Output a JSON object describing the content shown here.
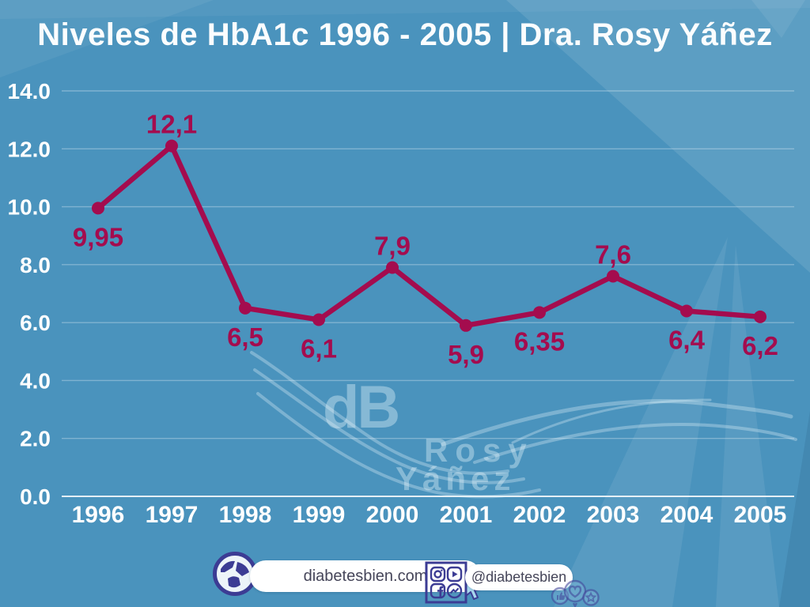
{
  "title": "Niveles de HbA1c 1996 - 2005 | Dra. Rosy Yáñez",
  "colors": {
    "background": "#4a93bd",
    "line": "#a40c4e",
    "axis_text": "#ffffff",
    "badge_ink": "#3c3c94",
    "pill_text": "#454559",
    "watermark": "rgba(234,247,252,0.38)"
  },
  "chart_data": {
    "type": "line",
    "title": "Niveles de HbA1c 1996 - 2005 | Dra. Rosy Yáñez",
    "categories": [
      "1996",
      "1997",
      "1998",
      "1999",
      "2000",
      "2001",
      "2002",
      "2003",
      "2004",
      "2005"
    ],
    "values": [
      9.95,
      12.1,
      6.5,
      6.1,
      7.9,
      5.9,
      6.35,
      7.6,
      6.4,
      6.2
    ],
    "point_labels": [
      "9,95",
      "12,1",
      "6,5",
      "6,1",
      "7,9",
      "5,9",
      "6,35",
      "7,6",
      "6,4",
      "6,2"
    ],
    "label_side": [
      "below",
      "above",
      "below",
      "below",
      "above",
      "below",
      "below",
      "above",
      "below",
      "below"
    ],
    "xlabel": "",
    "ylabel": "",
    "ylim": [
      0,
      14
    ],
    "ytick_step": 2,
    "yticks": [
      {
        "value": 0,
        "label": "0.0"
      },
      {
        "value": 2,
        "label": "2.0"
      },
      {
        "value": 4,
        "label": "4.0"
      },
      {
        "value": 6,
        "label": "6.0"
      },
      {
        "value": 8,
        "label": "8.0"
      },
      {
        "value": 10,
        "label": "10.0"
      },
      {
        "value": 12,
        "label": "12.0"
      },
      {
        "value": 14,
        "label": "14.0"
      }
    ],
    "grid": true,
    "legend": false
  },
  "watermark": {
    "logo": "dB",
    "line1": "Rosy",
    "line2": "Yáñez"
  },
  "footer": {
    "website": {
      "label": "diabetesbien.com"
    },
    "social": {
      "label": "@diabetesbien"
    }
  },
  "icons": {
    "website_badge": "globe-icon",
    "cursor": "arrow-cursor-icon",
    "social_grid": [
      "instagram-icon",
      "youtube-icon",
      "facebook-icon",
      "messenger-icon"
    ],
    "balloons": [
      "thumbs-up-balloon-icon",
      "heart-balloon-icon",
      "star-balloon-icon"
    ]
  }
}
